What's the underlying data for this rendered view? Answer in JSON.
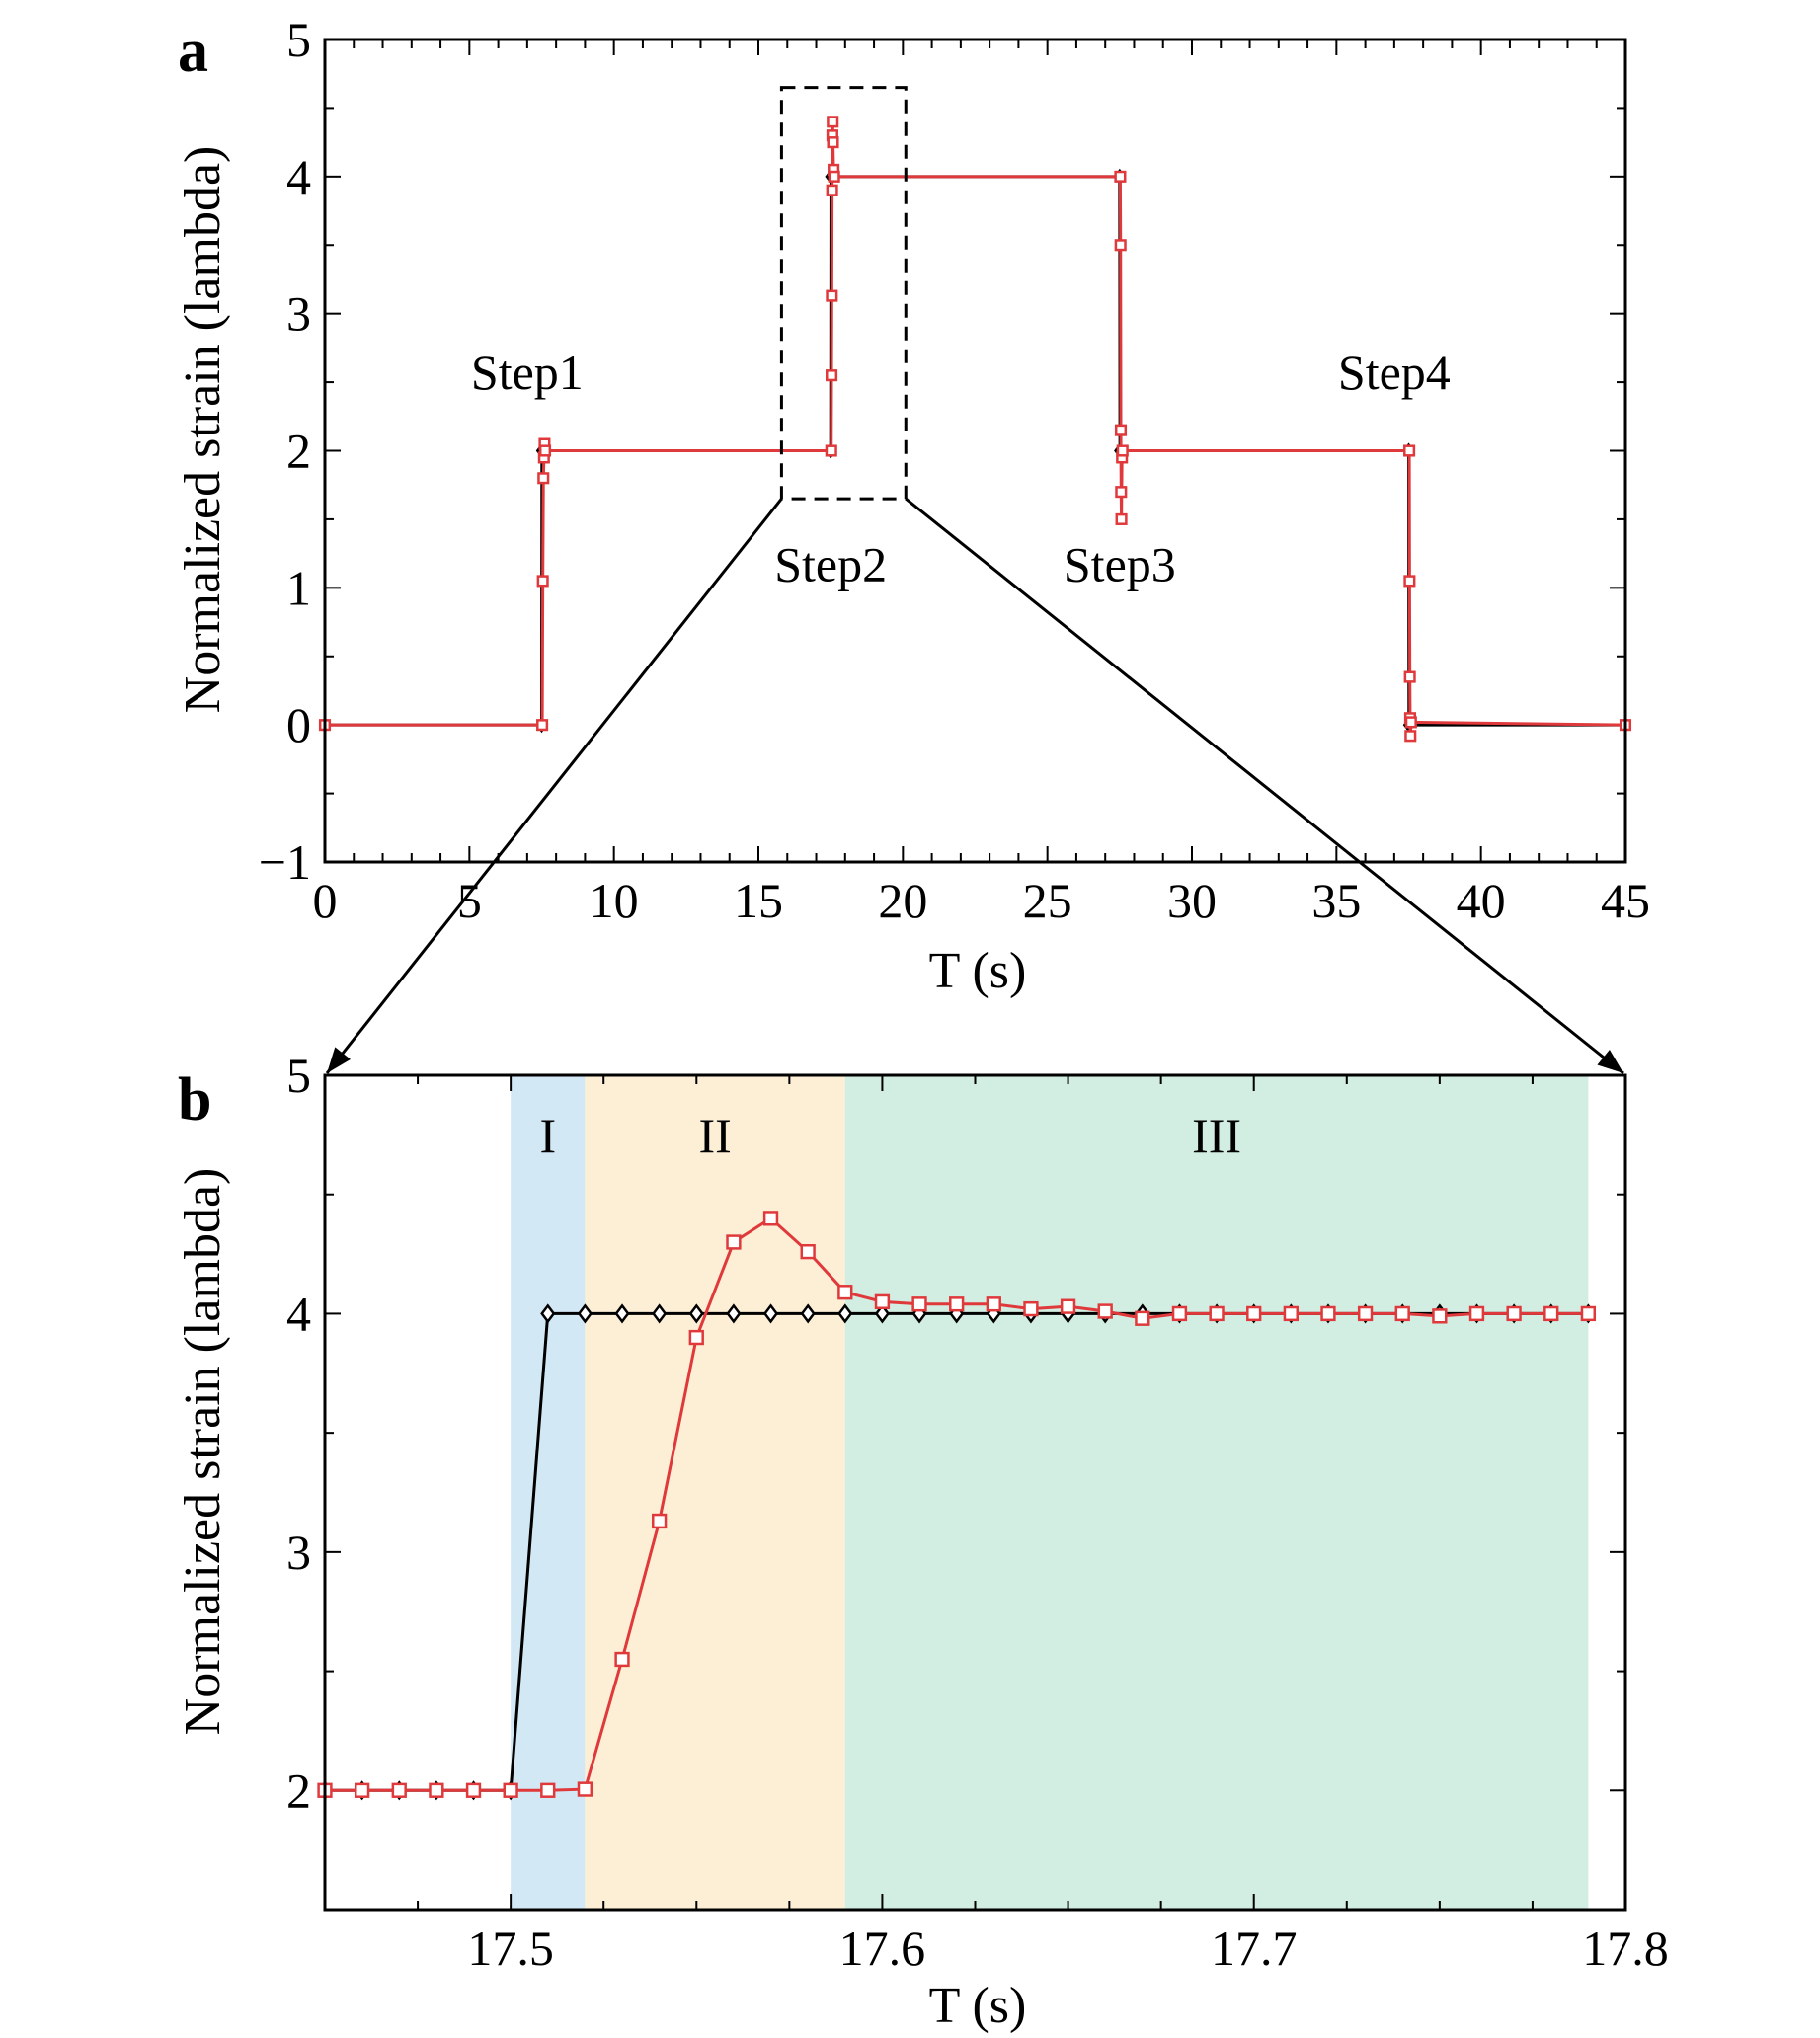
{
  "chart_data": [
    {
      "panel": "a",
      "type": "line",
      "xlabel": "T (s)",
      "ylabel": "Normalized strain (lambda)",
      "xlim": [
        0,
        45
      ],
      "ylim": [
        -1,
        5
      ],
      "xticks": [
        "0",
        "5",
        "10",
        "15",
        "20",
        "25",
        "30",
        "35",
        "40",
        "45"
      ],
      "yticks": [
        "−1",
        "0",
        "1",
        "2",
        "3",
        "4",
        "5"
      ],
      "grid": false,
      "annotations": [
        {
          "text": "Step1",
          "x": 7.0,
          "y": 2.45
        },
        {
          "text": "Step2",
          "x": 17.5,
          "y": 1.05
        },
        {
          "text": "Step3",
          "x": 27.5,
          "y": 1.05
        },
        {
          "text": "Step4",
          "x": 37.0,
          "y": 2.45
        }
      ],
      "zoom_box": {
        "x": [
          15.8,
          20.1
        ],
        "y": [
          1.65,
          4.65
        ]
      },
      "series": [
        {
          "marker": "diamond",
          "color": "#000000",
          "x": [
            0,
            7.5,
            7.51,
            17.5,
            17.51,
            27.5,
            27.51,
            37.5,
            37.51,
            45
          ],
          "y": [
            0,
            0,
            2,
            2,
            4,
            4,
            2,
            2,
            0,
            0
          ]
        },
        {
          "marker": "square",
          "color": "#e0393b",
          "x": [
            0,
            7.52,
            7.54,
            7.56,
            7.58,
            7.6,
            7.62,
            17.52,
            17.53,
            17.54,
            17.55,
            17.56,
            17.57,
            17.58,
            17.6,
            17.62,
            27.52,
            27.53,
            27.54,
            27.55,
            27.56,
            27.58,
            27.6,
            37.52,
            37.53,
            37.54,
            37.55,
            37.56,
            37.58,
            45
          ],
          "y": [
            0,
            0,
            1.05,
            1.8,
            1.95,
            2.05,
            2.0,
            2.0,
            2.55,
            3.13,
            3.9,
            4.3,
            4.4,
            4.25,
            4.05,
            4.0,
            4.0,
            3.5,
            2.15,
            1.7,
            1.5,
            1.95,
            2.0,
            2.0,
            1.05,
            0.35,
            0.05,
            -0.08,
            0.02,
            0
          ]
        }
      ]
    },
    {
      "panel": "b",
      "type": "line",
      "xlabel": "T (s)",
      "ylabel": "Normalized strain (lambda)",
      "xlim": [
        17.45,
        17.8
      ],
      "ylim": [
        1.5,
        5
      ],
      "xticks": [
        "17.5",
        "17.6",
        "17.7",
        "17.8"
      ],
      "yticks": [
        "2",
        "3",
        "4",
        "5"
      ],
      "grid": false,
      "regions": [
        {
          "label": "I",
          "x": [
            17.5,
            17.52
          ],
          "color": "#d3e8f5"
        },
        {
          "label": "II",
          "x": [
            17.52,
            17.59
          ],
          "color": "#fdefd6"
        },
        {
          "label": "III",
          "x": [
            17.59,
            17.79
          ],
          "color": "#d2ede1"
        }
      ],
      "series": [
        {
          "marker": "diamond",
          "color": "#000000",
          "x": [
            17.45,
            17.46,
            17.47,
            17.48,
            17.49,
            17.5,
            17.51,
            17.52,
            17.53,
            17.54,
            17.55,
            17.56,
            17.57,
            17.58,
            17.59,
            17.6,
            17.61,
            17.62,
            17.63,
            17.64,
            17.65,
            17.66,
            17.67,
            17.68,
            17.69,
            17.7,
            17.71,
            17.72,
            17.73,
            17.74,
            17.75,
            17.76,
            17.77,
            17.78,
            17.79
          ],
          "y": [
            2,
            2,
            2,
            2,
            2,
            2,
            4,
            4,
            4,
            4,
            4,
            4,
            4,
            4,
            4,
            4,
            4,
            4,
            4,
            4,
            4,
            4,
            4,
            4,
            4,
            4,
            4,
            4,
            4,
            4,
            4,
            4,
            4,
            4,
            4
          ]
        },
        {
          "marker": "square",
          "color": "#e0393b",
          "x": [
            17.45,
            17.46,
            17.47,
            17.48,
            17.49,
            17.5,
            17.51,
            17.52,
            17.53,
            17.54,
            17.55,
            17.56,
            17.57,
            17.58,
            17.59,
            17.6,
            17.61,
            17.62,
            17.63,
            17.64,
            17.65,
            17.66,
            17.67,
            17.68,
            17.69,
            17.7,
            17.71,
            17.72,
            17.73,
            17.74,
            17.75,
            17.76,
            17.77,
            17.78,
            17.79
          ],
          "y": [
            2,
            2,
            2,
            2,
            2,
            2,
            2,
            2.005,
            2.55,
            3.13,
            3.9,
            4.3,
            4.4,
            4.26,
            4.09,
            4.05,
            4.04,
            4.04,
            4.04,
            4.02,
            4.03,
            4.01,
            3.98,
            4.0,
            4.0,
            4.0,
            4.0,
            4.0,
            4.0,
            4.0,
            3.99,
            4.0,
            4.0,
            4.0,
            4.0
          ]
        }
      ]
    }
  ]
}
